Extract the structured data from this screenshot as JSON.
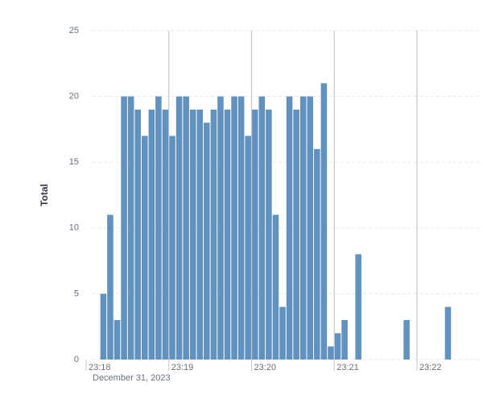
{
  "chart_data": {
    "type": "histogram",
    "y_title": "Total",
    "x_subtitle": "December 31, 2023",
    "bins": [
      83890,
      83895,
      83900,
      83905,
      83910,
      83915,
      83920,
      83925,
      83930,
      83935,
      83940,
      83945,
      83950,
      83955,
      83960,
      83965,
      83970,
      83975,
      83980,
      83985,
      83990,
      83995,
      84000,
      84005,
      84010,
      84015,
      84020,
      84025,
      84030,
      84035,
      84040,
      84045,
      84050,
      84055,
      84060,
      84065,
      84070,
      84075,
      84080,
      84085,
      84090,
      84095,
      84100,
      84105,
      84110,
      84115,
      84120,
      84125,
      84130,
      84135,
      84140,
      84145
    ],
    "values": [
      5,
      11,
      3,
      20,
      20,
      19,
      17,
      19,
      20,
      19,
      17,
      20,
      20,
      19,
      19,
      18,
      19,
      20,
      19,
      20,
      20,
      17,
      19,
      20,
      19,
      11,
      4,
      20,
      19,
      20,
      20,
      16,
      21,
      1,
      2,
      3,
      0,
      8,
      0,
      0,
      0,
      0,
      0,
      0,
      3,
      0,
      0,
      0,
      0,
      0,
      4
    ],
    "color": "#6092c0",
    "xlim": [
      83880,
      84165
    ],
    "xticks": [
      {
        "value": 83880,
        "label": "23:18"
      },
      {
        "value": 83940,
        "label": "23:19"
      },
      {
        "value": 84000,
        "label": "23:20"
      },
      {
        "value": 84060,
        "label": "23:21"
      },
      {
        "value": 84120,
        "label": "23:22"
      }
    ],
    "ylim": [
      0,
      25
    ],
    "yticks": [
      0,
      5,
      10,
      15,
      20,
      25
    ],
    "grid": true
  }
}
